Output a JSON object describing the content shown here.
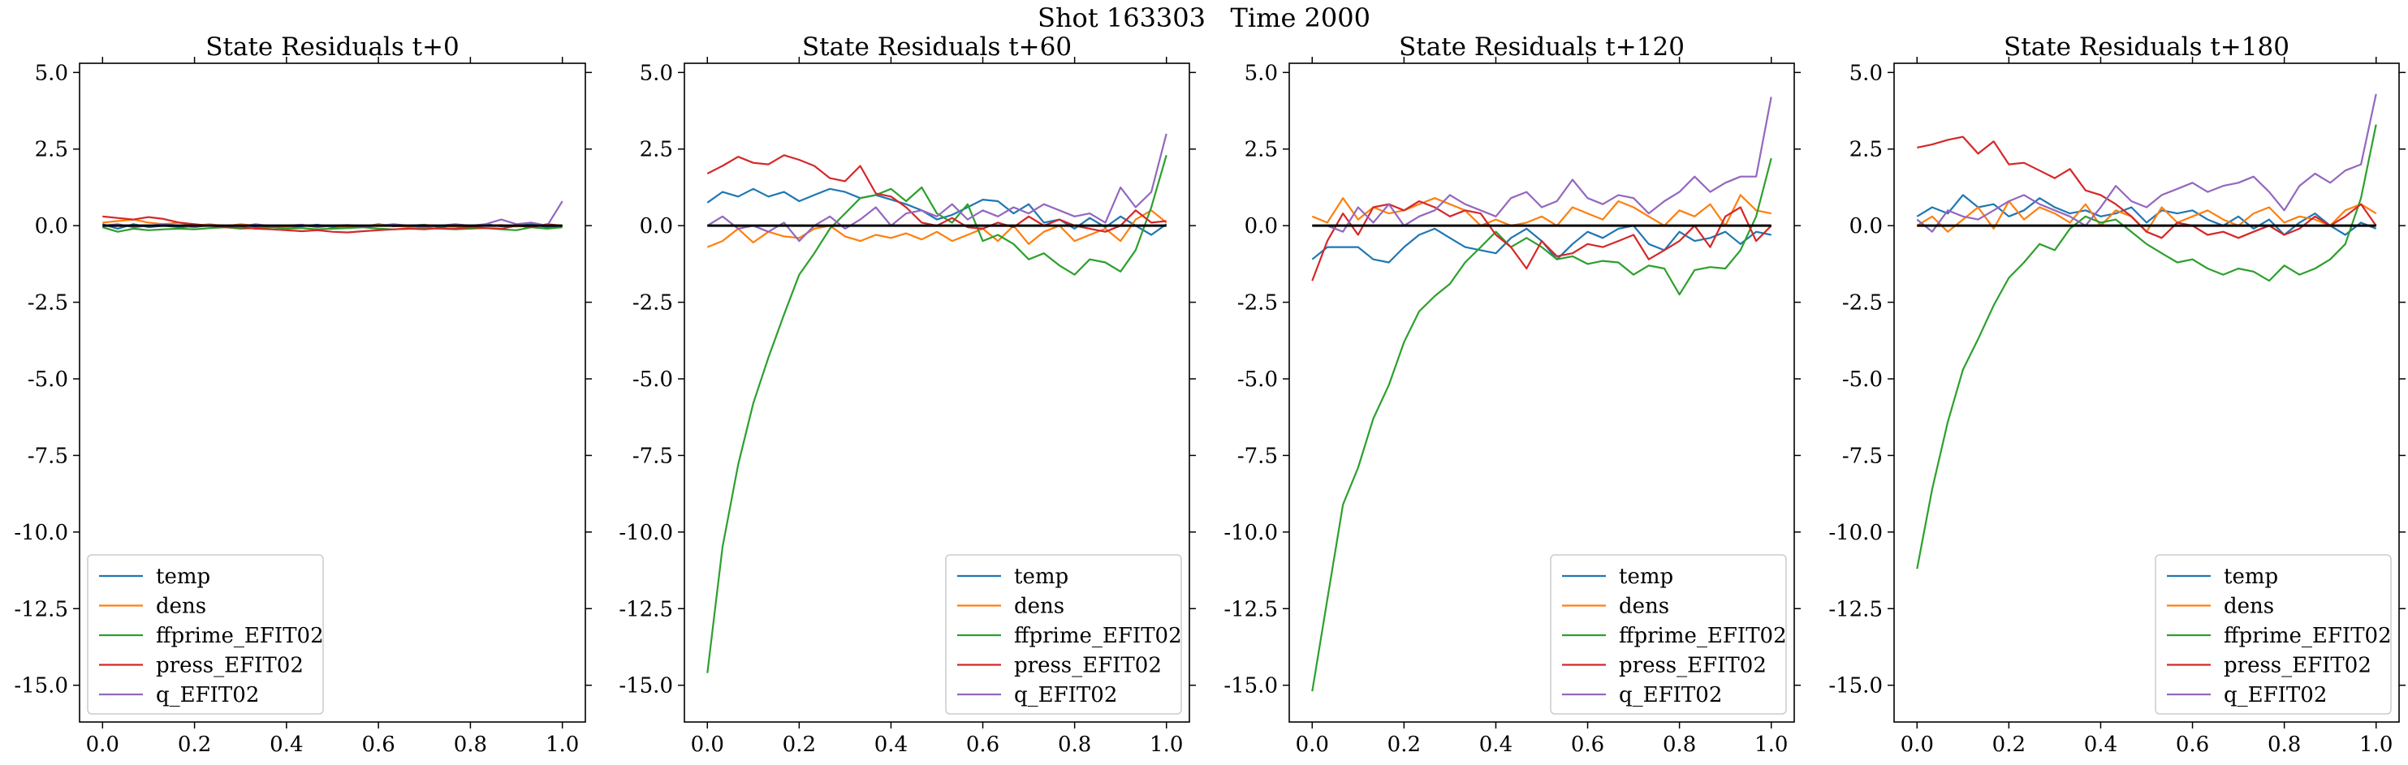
{
  "figure": {
    "suptitle": "Shot 163303   Time 2000"
  },
  "colors": {
    "temp": "#1f77b4",
    "dens": "#ff7f0e",
    "ffprime_EFIT02": "#2ca02c",
    "press_EFIT02": "#d62728",
    "q_EFIT02": "#9467bd",
    "zero_line": "#000000"
  },
  "chart_data": [
    {
      "type": "line",
      "title": "State Residuals t+0",
      "xlim": [
        -0.05,
        1.05
      ],
      "ylim": [
        -16.2,
        5.3
      ],
      "xticks": [
        0.0,
        0.2,
        0.4,
        0.6,
        0.8,
        1.0
      ],
      "yticks": [
        5.0,
        2.5,
        0.0,
        -2.5,
        -5.0,
        -7.5,
        -10.0,
        -12.5,
        -15.0
      ],
      "legend_position": "lower-left",
      "x": [
        0.0,
        0.033,
        0.067,
        0.1,
        0.133,
        0.167,
        0.2,
        0.233,
        0.267,
        0.3,
        0.333,
        0.367,
        0.4,
        0.433,
        0.467,
        0.5,
        0.533,
        0.567,
        0.6,
        0.633,
        0.667,
        0.7,
        0.733,
        0.767,
        0.8,
        0.833,
        0.867,
        0.9,
        0.933,
        0.967,
        1.0
      ],
      "series": [
        {
          "name": "temp",
          "values": [
            0.05,
            -0.1,
            0.05,
            -0.05,
            0.0,
            -0.05,
            -0.02,
            0.03,
            -0.05,
            0.02,
            -0.03,
            0.0,
            -0.05,
            -0.02,
            0.03,
            -0.05,
            0.0,
            -0.03,
            0.05,
            -0.02,
            0.0,
            0.03,
            -0.05,
            0.02,
            -0.03,
            0.05,
            -0.02,
            0.0,
            0.05,
            -0.05,
            0.0
          ]
        },
        {
          "name": "dens",
          "values": [
            0.1,
            0.15,
            0.2,
            0.1,
            0.05,
            0.1,
            0.0,
            0.05,
            -0.02,
            0.05,
            0.0,
            -0.05,
            -0.05,
            0.02,
            -0.05,
            0.0,
            -0.05,
            -0.02,
            0.03,
            0.0,
            -0.05,
            0.02,
            0.0,
            -0.03,
            -0.05,
            0.0,
            0.02,
            -0.03,
            0.0,
            0.02,
            0.0
          ]
        },
        {
          "name": "ffprime_EFIT02",
          "values": [
            -0.05,
            -0.2,
            -0.1,
            -0.15,
            -0.12,
            -0.1,
            -0.12,
            -0.08,
            -0.05,
            -0.1,
            -0.08,
            -0.05,
            -0.1,
            -0.08,
            -0.12,
            -0.1,
            -0.08,
            -0.05,
            -0.1,
            -0.12,
            -0.1,
            -0.08,
            -0.1,
            -0.12,
            -0.1,
            -0.08,
            -0.12,
            -0.15,
            -0.05,
            -0.1,
            -0.05
          ]
        },
        {
          "name": "press_EFIT02",
          "values": [
            0.3,
            0.25,
            0.2,
            0.28,
            0.22,
            0.1,
            0.05,
            0.0,
            -0.05,
            -0.05,
            -0.1,
            -0.12,
            -0.15,
            -0.18,
            -0.15,
            -0.2,
            -0.22,
            -0.18,
            -0.15,
            -0.12,
            -0.1,
            -0.12,
            -0.08,
            -0.1,
            -0.05,
            -0.08,
            -0.1,
            0.0,
            -0.05,
            0.05,
            0.0
          ]
        },
        {
          "name": "q_EFIT02",
          "values": [
            0.0,
            0.05,
            -0.05,
            0.0,
            0.05,
            0.0,
            -0.05,
            0.02,
            0.0,
            -0.03,
            0.05,
            -0.02,
            0.0,
            0.03,
            -0.05,
            0.0,
            0.02,
            -0.03,
            0.0,
            0.05,
            0.0,
            -0.05,
            0.0,
            0.05,
            0.0,
            0.05,
            0.2,
            0.05,
            0.1,
            0.0,
            0.8
          ]
        }
      ]
    },
    {
      "type": "line",
      "title": "State Residuals t+60",
      "xlim": [
        -0.05,
        1.05
      ],
      "ylim": [
        -16.2,
        5.3
      ],
      "xticks": [
        0.0,
        0.2,
        0.4,
        0.6,
        0.8,
        1.0
      ],
      "yticks": [
        5.0,
        2.5,
        0.0,
        -2.5,
        -5.0,
        -7.5,
        -10.0,
        -12.5,
        -15.0
      ],
      "legend_position": "lower-right",
      "x": [
        0.0,
        0.033,
        0.067,
        0.1,
        0.133,
        0.167,
        0.2,
        0.233,
        0.267,
        0.3,
        0.333,
        0.367,
        0.4,
        0.433,
        0.467,
        0.5,
        0.533,
        0.567,
        0.6,
        0.633,
        0.667,
        0.7,
        0.733,
        0.767,
        0.8,
        0.833,
        0.867,
        0.9,
        0.933,
        0.967,
        1.0
      ],
      "series": [
        {
          "name": "temp",
          "values": [
            0.75,
            1.1,
            0.95,
            1.2,
            0.95,
            1.1,
            0.8,
            1.0,
            1.2,
            1.1,
            0.9,
            1.0,
            0.85,
            0.7,
            0.5,
            0.2,
            0.35,
            0.6,
            0.85,
            0.8,
            0.4,
            0.7,
            0.1,
            0.2,
            -0.1,
            0.25,
            -0.05,
            0.3,
            0.0,
            -0.3,
            0.05
          ]
        },
        {
          "name": "dens",
          "values": [
            -0.7,
            -0.5,
            -0.1,
            -0.55,
            -0.2,
            -0.35,
            -0.4,
            -0.1,
            0.0,
            -0.35,
            -0.5,
            -0.3,
            -0.4,
            -0.25,
            -0.45,
            -0.2,
            -0.5,
            -0.3,
            -0.1,
            -0.5,
            0.0,
            -0.6,
            -0.2,
            0.0,
            -0.5,
            -0.3,
            -0.1,
            -0.5,
            0.2,
            0.5,
            0.1
          ]
        },
        {
          "name": "ffprime_EFIT02",
          "values": [
            -14.6,
            -10.5,
            -7.8,
            -5.8,
            -4.3,
            -2.9,
            -1.6,
            -0.9,
            -0.1,
            0.4,
            0.9,
            1.0,
            1.2,
            0.8,
            1.25,
            0.4,
            0.1,
            0.7,
            -0.5,
            -0.3,
            -0.6,
            -1.1,
            -0.9,
            -1.3,
            -1.6,
            -1.1,
            -1.2,
            -1.5,
            -0.8,
            0.6,
            2.3
          ]
        },
        {
          "name": "press_EFIT02",
          "values": [
            1.7,
            1.95,
            2.25,
            2.05,
            2.0,
            2.3,
            2.15,
            1.95,
            1.55,
            1.45,
            1.95,
            1.05,
            0.95,
            0.6,
            0.1,
            0.0,
            0.25,
            -0.05,
            -0.1,
            0.1,
            -0.05,
            0.3,
            0.0,
            0.2,
            0.0,
            -0.1,
            -0.2,
            0.0,
            0.5,
            0.1,
            0.15
          ]
        },
        {
          "name": "q_EFIT02",
          "values": [
            0.0,
            0.3,
            -0.1,
            0.0,
            -0.2,
            0.1,
            -0.5,
            0.0,
            0.3,
            -0.1,
            0.2,
            0.6,
            0.0,
            0.4,
            0.5,
            0.3,
            0.7,
            0.2,
            0.5,
            0.3,
            0.6,
            0.4,
            0.7,
            0.5,
            0.3,
            0.4,
            0.1,
            1.25,
            0.6,
            1.1,
            3.0
          ]
        }
      ]
    },
    {
      "type": "line",
      "title": "State Residuals t+120",
      "xlim": [
        -0.05,
        1.05
      ],
      "ylim": [
        -16.2,
        5.3
      ],
      "xticks": [
        0.0,
        0.2,
        0.4,
        0.6,
        0.8,
        1.0
      ],
      "yticks": [
        5.0,
        2.5,
        0.0,
        -2.5,
        -5.0,
        -7.5,
        -10.0,
        -12.5,
        -15.0
      ],
      "legend_position": "lower-right",
      "x": [
        0.0,
        0.033,
        0.067,
        0.1,
        0.133,
        0.167,
        0.2,
        0.233,
        0.267,
        0.3,
        0.333,
        0.367,
        0.4,
        0.433,
        0.467,
        0.5,
        0.533,
        0.567,
        0.6,
        0.633,
        0.667,
        0.7,
        0.733,
        0.767,
        0.8,
        0.833,
        0.867,
        0.9,
        0.933,
        0.967,
        1.0
      ],
      "series": [
        {
          "name": "temp",
          "values": [
            -1.1,
            -0.7,
            -0.7,
            -0.7,
            -1.1,
            -1.2,
            -0.7,
            -0.3,
            -0.1,
            -0.4,
            -0.7,
            -0.8,
            -0.9,
            -0.4,
            -0.1,
            -0.5,
            -1.1,
            -0.6,
            -0.2,
            -0.4,
            -0.1,
            0.0,
            -0.6,
            -0.8,
            -0.2,
            -0.5,
            -0.4,
            -0.2,
            -0.6,
            -0.2,
            -0.3
          ]
        },
        {
          "name": "dens",
          "values": [
            0.3,
            0.1,
            0.9,
            0.2,
            0.6,
            0.4,
            0.5,
            0.7,
            0.9,
            0.7,
            0.5,
            0.0,
            0.2,
            0.0,
            0.1,
            0.3,
            0.0,
            0.6,
            0.4,
            0.2,
            0.8,
            0.6,
            0.3,
            0.0,
            0.5,
            0.3,
            0.7,
            0.0,
            1.0,
            0.5,
            0.4
          ]
        },
        {
          "name": "ffprime_EFIT02",
          "values": [
            -15.2,
            -12.2,
            -9.1,
            -7.9,
            -6.3,
            -5.2,
            -3.8,
            -2.8,
            -2.3,
            -1.9,
            -1.2,
            -0.7,
            -0.2,
            -0.7,
            -0.4,
            -0.7,
            -1.1,
            -1.0,
            -1.25,
            -1.15,
            -1.2,
            -1.6,
            -1.3,
            -1.4,
            -2.25,
            -1.45,
            -1.35,
            -1.4,
            -0.8,
            0.3,
            2.2
          ]
        },
        {
          "name": "press_EFIT02",
          "values": [
            -1.8,
            -0.5,
            0.4,
            -0.3,
            0.6,
            0.7,
            0.5,
            0.8,
            0.6,
            0.3,
            0.5,
            0.4,
            -0.3,
            -0.7,
            -1.4,
            -0.5,
            -1.0,
            -0.9,
            -0.6,
            -0.7,
            -0.5,
            -0.3,
            -1.1,
            -0.8,
            -0.5,
            0.0,
            -0.7,
            0.3,
            0.6,
            -0.5,
            0.0
          ]
        },
        {
          "name": "q_EFIT02",
          "values": [
            0.0,
            0.0,
            -0.2,
            0.6,
            0.1,
            0.7,
            0.0,
            0.3,
            0.5,
            1.0,
            0.7,
            0.5,
            0.3,
            0.9,
            1.1,
            0.6,
            0.8,
            1.5,
            0.9,
            0.7,
            1.0,
            0.9,
            0.4,
            0.8,
            1.1,
            1.6,
            1.1,
            1.4,
            1.6,
            1.6,
            4.2
          ]
        }
      ]
    },
    {
      "type": "line",
      "title": "State Residuals t+180",
      "xlim": [
        -0.05,
        1.05
      ],
      "ylim": [
        -16.2,
        5.3
      ],
      "xticks": [
        0.0,
        0.2,
        0.4,
        0.6,
        0.8,
        1.0
      ],
      "yticks": [
        5.0,
        2.5,
        0.0,
        -2.5,
        -5.0,
        -7.5,
        -10.0,
        -12.5,
        -15.0
      ],
      "legend_position": "lower-right",
      "x": [
        0.0,
        0.033,
        0.067,
        0.1,
        0.133,
        0.167,
        0.2,
        0.233,
        0.267,
        0.3,
        0.333,
        0.367,
        0.4,
        0.433,
        0.467,
        0.5,
        0.533,
        0.567,
        0.6,
        0.633,
        0.667,
        0.7,
        0.733,
        0.767,
        0.8,
        0.833,
        0.867,
        0.9,
        0.933,
        0.967,
        1.0
      ],
      "series": [
        {
          "name": "temp",
          "values": [
            0.3,
            0.6,
            0.4,
            1.0,
            0.6,
            0.7,
            0.3,
            0.5,
            0.9,
            0.6,
            0.4,
            0.5,
            0.3,
            0.4,
            0.6,
            0.1,
            0.5,
            0.4,
            0.5,
            0.2,
            0.0,
            0.3,
            -0.1,
            0.2,
            -0.3,
            0.1,
            0.4,
            0.0,
            -0.3,
            0.1,
            -0.1
          ]
        },
        {
          "name": "dens",
          "values": [
            0.0,
            0.3,
            -0.2,
            0.2,
            0.6,
            -0.1,
            0.8,
            0.2,
            0.6,
            0.4,
            0.1,
            0.7,
            0.0,
            0.5,
            0.3,
            -0.2,
            0.6,
            0.1,
            0.3,
            0.5,
            0.2,
            0.0,
            0.4,
            0.6,
            0.1,
            0.3,
            0.2,
            0.0,
            0.5,
            0.7,
            0.4
          ]
        },
        {
          "name": "ffprime_EFIT02",
          "values": [
            -11.2,
            -8.6,
            -6.4,
            -4.7,
            -3.7,
            -2.6,
            -1.7,
            -1.2,
            -0.6,
            -0.8,
            -0.1,
            0.3,
            0.1,
            0.2,
            -0.2,
            -0.6,
            -0.9,
            -1.2,
            -1.1,
            -1.4,
            -1.6,
            -1.4,
            -1.5,
            -1.8,
            -1.3,
            -1.6,
            -1.4,
            -1.1,
            -0.6,
            0.9,
            3.3
          ]
        },
        {
          "name": "press_EFIT02",
          "values": [
            2.55,
            2.65,
            2.8,
            2.9,
            2.35,
            2.75,
            2.0,
            2.05,
            1.8,
            1.55,
            1.85,
            1.15,
            1.0,
            0.7,
            0.3,
            -0.2,
            -0.4,
            0.1,
            0.0,
            -0.3,
            -0.2,
            -0.4,
            -0.2,
            0.0,
            -0.3,
            -0.1,
            0.3,
            0.0,
            0.3,
            0.7,
            0.0
          ]
        },
        {
          "name": "q_EFIT02",
          "values": [
            0.2,
            -0.2,
            0.5,
            0.3,
            0.2,
            0.5,
            0.8,
            1.0,
            0.7,
            0.5,
            0.3,
            0.0,
            0.6,
            1.3,
            0.8,
            0.6,
            1.0,
            1.2,
            1.4,
            1.1,
            1.3,
            1.4,
            1.6,
            1.1,
            0.5,
            1.3,
            1.7,
            1.4,
            1.8,
            2.0,
            4.3
          ]
        }
      ]
    }
  ]
}
